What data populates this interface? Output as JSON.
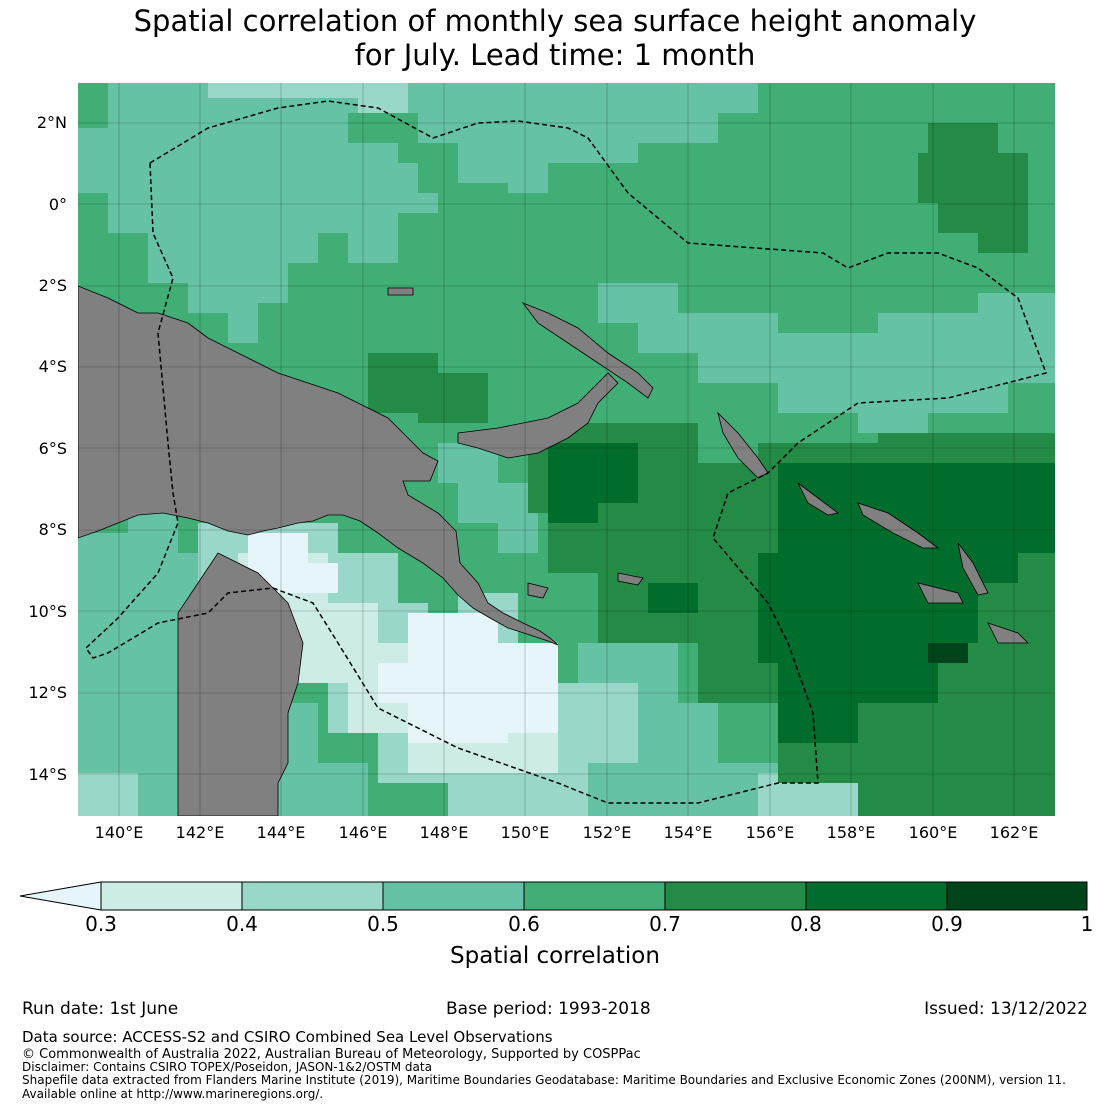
{
  "title_line1": "Spatial correlation of monthly sea surface height anomaly",
  "title_line2": "for July. Lead time: 1 month",
  "lat_labels": [
    "2°N",
    "0°",
    "2°S",
    "4°S",
    "6°S",
    "8°S",
    "10°S",
    "12°S",
    "14°S"
  ],
  "lon_labels": [
    "140°E",
    "142°E",
    "144°E",
    "146°E",
    "148°E",
    "150°E",
    "152°E",
    "154°E",
    "156°E",
    "158°E",
    "160°E",
    "162°E"
  ],
  "colorbar": {
    "label": "Spatial correlation",
    "ticks": [
      "0.3",
      "0.4",
      "0.5",
      "0.6",
      "0.7",
      "0.8",
      "0.9",
      "1"
    ],
    "colors": [
      "#cdece6",
      "#99d8c8",
      "#66c2a4",
      "#41ae76",
      "#238b45",
      "#006d2c",
      "#00441b"
    ],
    "under_color": "#e5f5f9"
  },
  "colors": {
    "land": "#808080",
    "eez_line": "#000000"
  },
  "footer": {
    "run_date": "Run date: 1st June",
    "base_period": "Base period: 1993-2018",
    "issued": "Issued: 13/12/2022",
    "data_source": "Data source: ACCESS-S2 and CSIRO Combined Sea Level Observations",
    "copyright": "© Commonwealth of Australia 2022, Australian Bureau of Meteorology, Supported by COSPPac",
    "disclaimer": "Disclaimer: Contains CSIRO TOPEX/Poseidon, JASON-1&2/OSTM data",
    "shapefile": "Shapefile data extracted from Flanders Marine Institute (2019), Maritime Boundaries Geodatabase: Maritime Boundaries and Exclusive Economic Zones (200NM), version 11.",
    "available": "Available online at http://www.marineregions.org/."
  }
}
